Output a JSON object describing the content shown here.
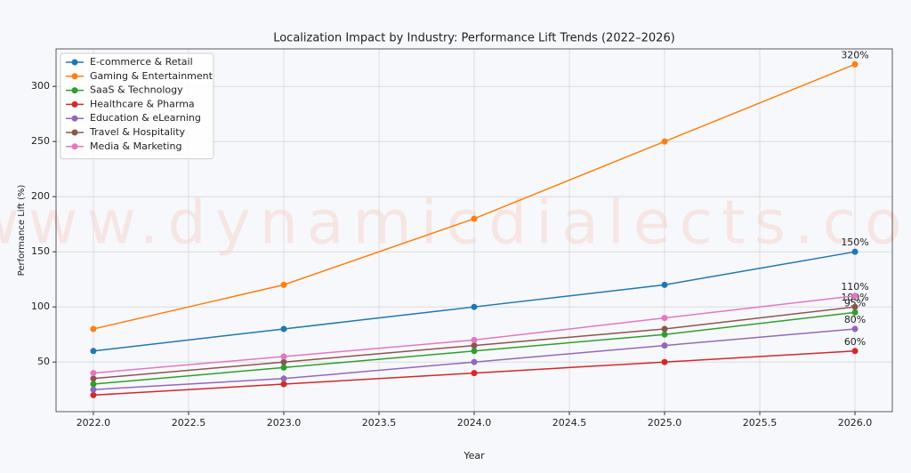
{
  "chart_data": {
    "type": "line",
    "title": "Localization Impact by Industry: Performance Lift Trends (2022–2026)",
    "watermark": "www.dynamicdialects.com",
    "x_label": "Year",
    "y_label": "Performance Lift (%)",
    "x": [
      2022,
      2023,
      2024,
      2025,
      2026
    ],
    "series": [
      {
        "name": "E-commerce & Retail",
        "color": "#1f77b4",
        "values": [
          60,
          80,
          100,
          120,
          150
        ],
        "value_labels": [
          null,
          null,
          null,
          null,
          "150%"
        ]
      },
      {
        "name": "Gaming & Entertainment",
        "color": "#ff7f0e",
        "values": [
          80,
          120,
          180,
          250,
          320
        ],
        "value_labels": [
          null,
          null,
          null,
          null,
          "320%"
        ]
      },
      {
        "name": "SaaS & Technology",
        "color": "#2ca02c",
        "values": [
          30,
          45,
          60,
          75,
          95
        ],
        "value_labels": [
          null,
          null,
          null,
          null,
          "95%"
        ]
      },
      {
        "name": "Healthcare & Pharma",
        "color": "#d62728",
        "values": [
          20,
          30,
          40,
          50,
          60
        ],
        "value_labels": [
          null,
          null,
          null,
          null,
          "60%"
        ]
      },
      {
        "name": "Education & eLearning",
        "color": "#9467bd",
        "values": [
          25,
          35,
          50,
          65,
          80
        ],
        "value_labels": [
          null,
          null,
          null,
          null,
          "80%"
        ]
      },
      {
        "name": "Travel & Hospitality",
        "color": "#8c564b",
        "values": [
          35,
          50,
          65,
          80,
          100
        ],
        "value_labels": [
          null,
          null,
          null,
          null,
          "100%"
        ]
      },
      {
        "name": "Media & Marketing",
        "color": "#e377c2",
        "values": [
          40,
          55,
          70,
          90,
          110
        ],
        "value_labels": [
          null,
          null,
          null,
          null,
          "110%"
        ]
      }
    ],
    "xlim": [
      2021.804,
      2026.196
    ],
    "ylim": [
      5,
      334
    ],
    "xticks": [
      {
        "value": 2022,
        "label": "2022.0"
      },
      {
        "value": 2022.5,
        "label": "2022.5"
      },
      {
        "value": 2023,
        "label": "2023.0"
      },
      {
        "value": 2023.5,
        "label": "2023.5"
      },
      {
        "value": 2024,
        "label": "2024.0"
      },
      {
        "value": 2024.5,
        "label": "2024.5"
      },
      {
        "value": 2025,
        "label": "2025.0"
      },
      {
        "value": 2025.5,
        "label": "2025.5"
      },
      {
        "value": 2026,
        "label": "2026.0"
      }
    ],
    "yticks": [
      50,
      100,
      150,
      200,
      250,
      300
    ],
    "grid": true,
    "legend": "upper left"
  }
}
